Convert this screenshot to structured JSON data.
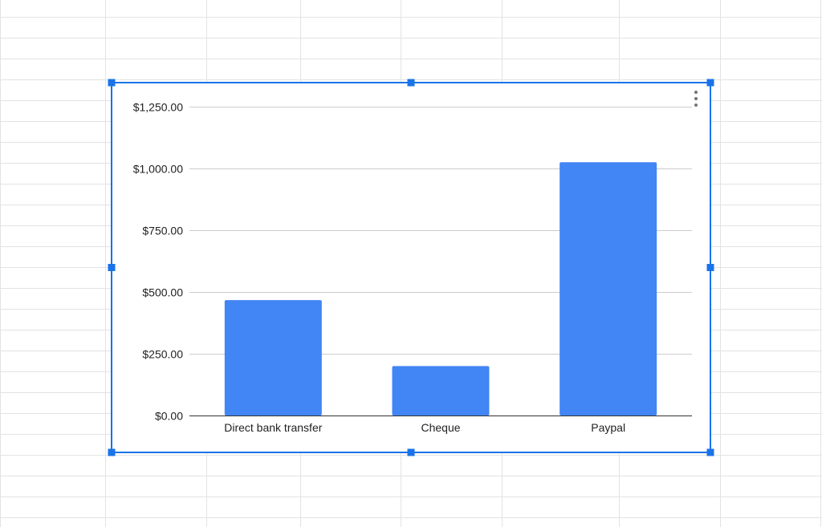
{
  "chart_data": {
    "type": "bar",
    "categories": [
      "Direct bank transfer",
      "Cheque",
      "Paypal"
    ],
    "values": [
      467,
      200,
      1025
    ],
    "yticks": [
      "$0.00",
      "$250.00",
      "$500.00",
      "$750.00",
      "$1,000.00",
      "$1,250.00"
    ],
    "ylim": [
      0,
      1250
    ],
    "title": "",
    "xlabel": "",
    "ylabel": "",
    "grid": true,
    "legend": "none",
    "bar_color": "#4285f4"
  },
  "selection": {
    "color": "#1a73e8"
  },
  "menu": {
    "icon": "more-vert-icon"
  }
}
